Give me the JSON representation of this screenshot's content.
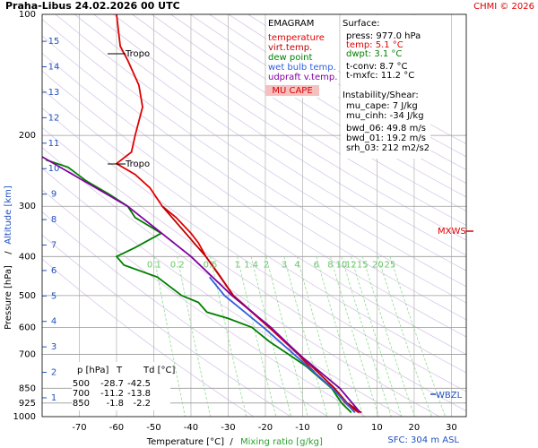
{
  "chart_data": {
    "type": "line",
    "title": "Praha-Libus   24.02.2026 00 UTC",
    "credit": "CHMI © 2026",
    "x_label": "Temperature [°C]",
    "x_label_sep": "/",
    "x_label_2": "Mixing ratio [g/kg]",
    "y_label": "Pressure [hPa]",
    "y_label_sep": "/",
    "y2_label": "Altitude [km]",
    "xlim": [
      -80,
      34
    ],
    "xticks": [
      -70,
      -60,
      -50,
      -40,
      -30,
      -20,
      -10,
      0,
      10,
      20,
      30
    ],
    "ylim": [
      1000,
      100
    ],
    "log_y": true,
    "yticks": [
      100,
      200,
      300,
      400,
      500,
      600,
      700,
      850,
      925,
      1000
    ],
    "y2lim": [
      0.26,
      16.06
    ],
    "y2ticks": [
      1,
      2,
      3,
      4,
      5,
      6,
      7,
      8,
      9,
      10,
      11,
      12,
      13,
      14,
      15
    ],
    "grid": true,
    "mixing_ratios": [
      0.1,
      0.2,
      0.5,
      1,
      1.4,
      2,
      3,
      4,
      6,
      8,
      10,
      12,
      15,
      20,
      25
    ],
    "legend_title": "EMAGRAM",
    "legend_badge": "MU CAPE",
    "series": [
      {
        "name": "temperature",
        "color": "#e00000",
        "x": [
          5.1,
          1.5,
          -1.8,
          -5.5,
          -11.2,
          -19,
          -28.7,
          -32,
          -36,
          -38,
          -40,
          -44,
          -47.7,
          -51,
          -55,
          -60,
          -56,
          -55,
          -53,
          -54,
          -57,
          -59,
          -60
        ],
        "values": [
          977,
          925,
          850,
          800,
          700,
          600,
          500,
          450,
          400,
          370,
          350,
          320,
          300,
          270,
          250,
          235,
          220,
          200,
          170,
          150,
          130,
          120,
          100
        ]
      },
      {
        "name": "virt.temp.",
        "color": "#c00000",
        "x": [
          5.8,
          2.0,
          -1.4,
          -10.9,
          -18.8,
          -28.6,
          -36,
          -47.7
        ],
        "values": [
          977,
          925,
          850,
          700,
          600,
          500,
          400,
          300
        ]
      },
      {
        "name": "dew point",
        "color": "#008000",
        "x": [
          3.1,
          0.5,
          -2.2,
          -5.5,
          -9,
          -13.8,
          -19,
          -23.6,
          -30,
          -35.7,
          -38,
          -42.5,
          -49,
          -58,
          -60,
          -55,
          -48,
          -55,
          -57,
          -62,
          -68,
          -73,
          -79
        ],
        "values": [
          977,
          925,
          850,
          800,
          750,
          700,
          650,
          600,
          570,
          550,
          520,
          500,
          450,
          420,
          400,
          380,
          350,
          320,
          300,
          280,
          260,
          240,
          230
        ]
      },
      {
        "name": "wet bulb temp.",
        "color": "#3060e0",
        "x": [
          4.1,
          -2,
          -12.3,
          -20.5,
          -31,
          -35
        ],
        "values": [
          977,
          850,
          700,
          600,
          500,
          450
        ]
      },
      {
        "name": "udpraft v.temp.",
        "color": "#8000a0",
        "x": [
          5.5,
          0,
          -11,
          -18.5,
          -29,
          -40,
          -57,
          -80
        ],
        "values": [
          977,
          850,
          700,
          600,
          500,
          400,
          300,
          226
        ]
      }
    ],
    "info": [
      "Surface:",
      "press: 977.0 hPa",
      "temp: 5.1 °C",
      "dwpt: 3.1 °C",
      "t-conv: 8.7 °C",
      "t-mxfc: 11.2 °C",
      "Instability/Shear:",
      "mu_cape: 7 J/kg",
      "mu_cinh: -34 J/kg",
      "bwd_06: 49.8 m/s",
      "bwd_01: 19.2 m/s",
      "srh_03: 212 m2/s2"
    ],
    "table": {
      "header": [
        "p [hPa]",
        "T",
        "Td [°C]"
      ],
      "rows": [
        [
          "500",
          "-28.7",
          "-42.5"
        ],
        [
          "700",
          "-11.2",
          "-13.8"
        ],
        [
          "850",
          "-1.8",
          "-2.2"
        ]
      ]
    },
    "tropo_label": "Tropo",
    "mxws_label": "MXWS",
    "wbzl_label": "WBZL",
    "sfc_label": "SFC: 304 m ASL"
  }
}
